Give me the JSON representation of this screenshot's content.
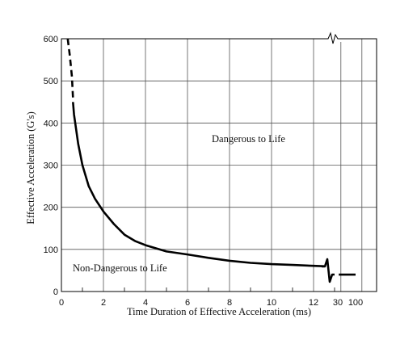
{
  "chart_data": {
    "type": "line",
    "title": "",
    "xlabel": "Time Duration of Effective Acceleration (ms)",
    "ylabel": "Effective Acceleration (G's)",
    "xlim": [
      0,
      14
    ],
    "ylim": [
      0,
      600
    ],
    "x_ticks": [
      "0",
      "2",
      "4",
      "6",
      "8",
      "10",
      "12",
      "30",
      "100"
    ],
    "y_ticks": [
      "0",
      "100",
      "200",
      "300",
      "400",
      "500",
      "600"
    ],
    "grid": true,
    "annotations": [
      "Dangerous to Life",
      "Non-Dangerous to Life"
    ],
    "series": [
      {
        "style": "dashed",
        "x": [
          0.3,
          0.4,
          0.5,
          0.55
        ],
        "y": [
          600,
          560,
          510,
          460
        ]
      },
      {
        "style": "solid",
        "x": [
          0.55,
          0.6,
          0.8,
          1.0,
          1.3,
          1.6,
          2.0,
          2.5,
          3.0,
          3.5,
          4.0,
          5.0,
          6.0,
          7.0,
          8.0,
          9.0,
          10.0,
          11.0,
          12.0,
          12.5
        ],
        "y": [
          450,
          420,
          350,
          300,
          250,
          220,
          190,
          160,
          135,
          120,
          110,
          95,
          88,
          80,
          73,
          68,
          65,
          63,
          61,
          60
        ]
      },
      {
        "style": "solid",
        "x": [
          13.2,
          14.0
        ],
        "y": [
          40,
          40
        ]
      }
    ]
  }
}
